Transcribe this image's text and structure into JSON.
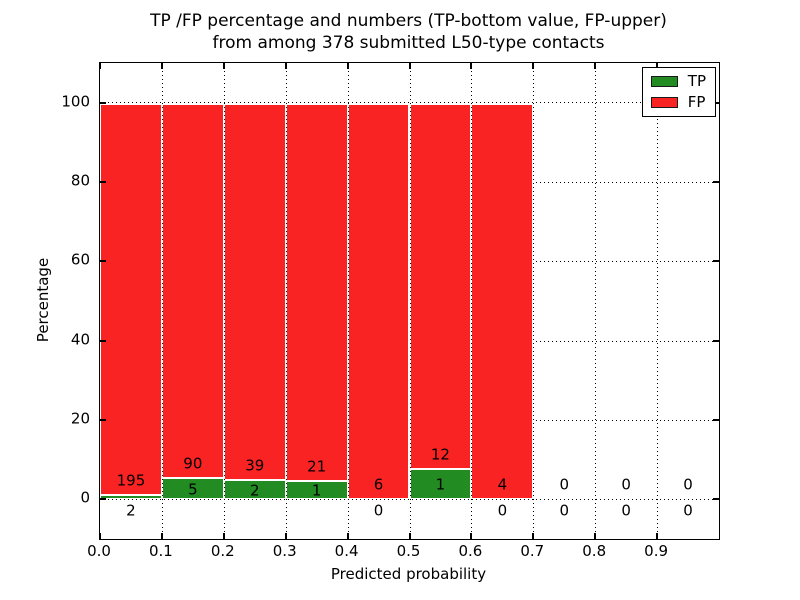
{
  "title": {
    "line1": "TP /FP percentage and numbers (TP-bottom value, FP-upper)",
    "line2": "from among 378 submitted L50-type contacts"
  },
  "axes": {
    "xlabel": "Predicted probability",
    "ylabel": "Percentage"
  },
  "legend": {
    "items": [
      {
        "label": "TP",
        "color": "#228b22"
      },
      {
        "label": "FP",
        "color": "#fa2323"
      }
    ],
    "position": "upper right"
  },
  "chart_data": {
    "type": "bar",
    "stacked": true,
    "normalized_each_bar_to_percent": true,
    "title": "TP /FP percentage and numbers (TP-bottom value, FP-upper) from among 378 submitted L50-type contacts",
    "xlabel": "Predicted probability",
    "ylabel": "Percentage",
    "total_contacts": 378,
    "bin_width": 0.1,
    "bin_starts": [
      0.0,
      0.1,
      0.2,
      0.3,
      0.4,
      0.5,
      0.6,
      0.7,
      0.8,
      0.9
    ],
    "categories": [
      "0.0-0.1",
      "0.1-0.2",
      "0.2-0.3",
      "0.3-0.4",
      "0.4-0.5",
      "0.5-0.6",
      "0.6-0.7",
      "0.7-0.8",
      "0.8-0.9",
      "0.9-1.0"
    ],
    "series": [
      {
        "name": "TP",
        "color": "#228b22",
        "counts": [
          2,
          5,
          2,
          1,
          0,
          1,
          0,
          0,
          0,
          0
        ]
      },
      {
        "name": "FP",
        "color": "#fa2323",
        "counts": [
          195,
          90,
          39,
          21,
          6,
          12,
          4,
          0,
          0,
          0
        ]
      }
    ],
    "xlim": [
      0.0,
      1.0
    ],
    "ylim": [
      -10,
      110
    ],
    "yticks": [
      0,
      20,
      40,
      60,
      80,
      100
    ],
    "ytick_labels": [
      "0",
      "20",
      "40",
      "60",
      "80",
      "100"
    ],
    "xticks": [
      0.0,
      0.1,
      0.2,
      0.3,
      0.4,
      0.5,
      0.6,
      0.7,
      0.8,
      0.9
    ],
    "xtick_labels": [
      "0.0",
      "0.1",
      "0.2",
      "0.3",
      "0.4",
      "0.5",
      "0.6",
      "0.7",
      "0.8",
      "0.9"
    ],
    "grid": "dotted",
    "legend_position": "upper right"
  }
}
